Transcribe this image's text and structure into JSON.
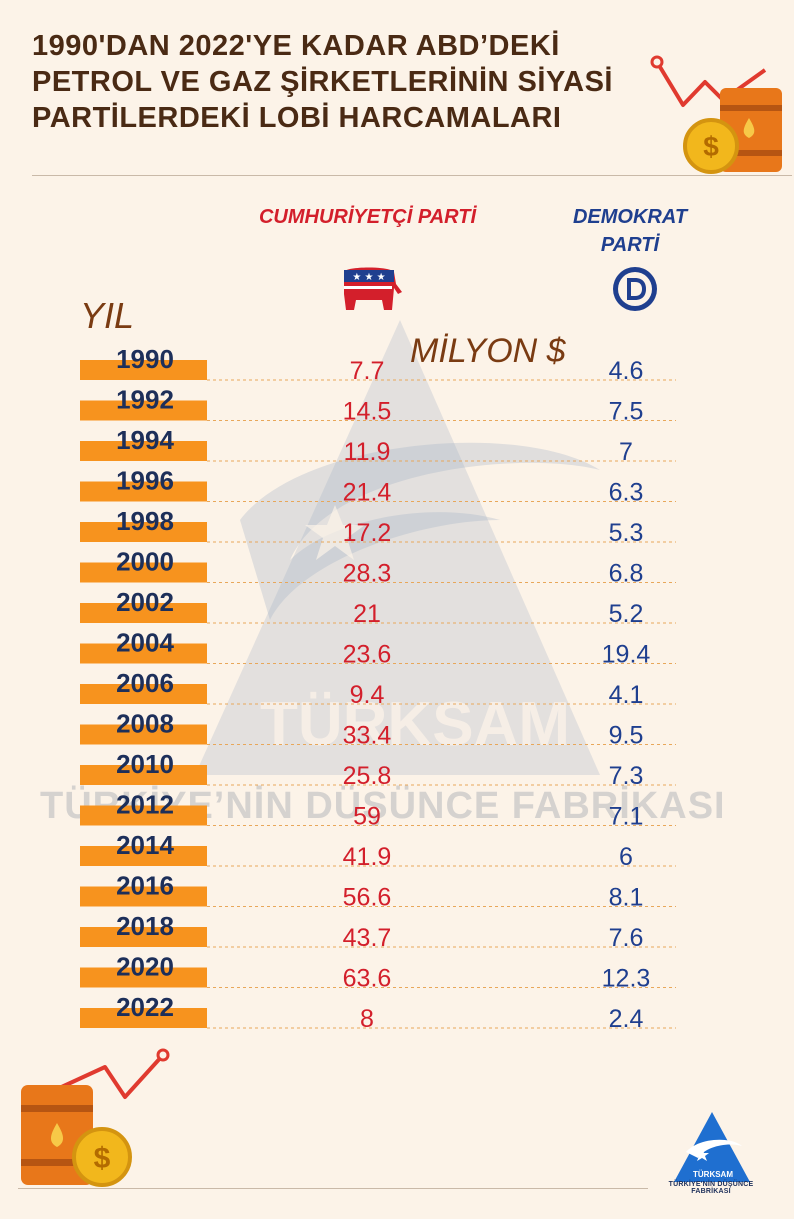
{
  "title": "1990'DAN 2022'YE KADAR ABD’DEKİ PETROL VE GAZ ŞİRKETLERİNİN SİYASİ PARTİLERDEKİ LOBİ HARCAMALARI",
  "columns": {
    "republican": "CUMHURİYETÇİ PARTİ",
    "democrat": "DEMOKRAT PARTİ",
    "year": "YIL",
    "unit": "MİLYON $"
  },
  "watermark": {
    "brand": "TÜRKSAM",
    "slogan": "TÜRKİYE’NİN DÜŞÜNCE FABRİKASI"
  },
  "footer_logo": {
    "brand": "TÜRKSAM",
    "caption": "TÜRKİYE'NİN DÜŞÜNCE FABRİKASI"
  },
  "icons": [
    "oil-barrel-icon",
    "dollar-coin-icon",
    "trend-line-icon",
    "republican-elephant-icon",
    "democrat-d-icon"
  ],
  "colors": {
    "background": "#fcf3e8",
    "title": "#4a2a14",
    "republican": "#d31f2b",
    "democrat": "#1f3f8f",
    "year_bar": "#f7931e",
    "year_text": "#1d2f5a"
  },
  "chart_data": {
    "type": "table",
    "title": "1990'DAN 2022'YE KADAR ABD’DEKİ PETROL VE GAZ ŞİRKETLERİNİN SİYASİ PARTİLERDEKİ LOBİ HARCAMALARI",
    "unit": "MİLYON $",
    "categories": [
      "1990",
      "1992",
      "1994",
      "1996",
      "1998",
      "2000",
      "2002",
      "2004",
      "2006",
      "2008",
      "2010",
      "2012",
      "2014",
      "2016",
      "2018",
      "2020",
      "2022"
    ],
    "series": [
      {
        "name": "CUMHURİYETÇİ PARTİ",
        "values": [
          "7.7",
          "14.5",
          "11.9",
          "21.4",
          "17.2",
          "28.3",
          "21",
          "23.6",
          "9.4",
          "33.4",
          "25.8",
          "59",
          "41.9",
          "56.6",
          "43.7",
          "63.6",
          "8"
        ]
      },
      {
        "name": "DEMOKRAT PARTİ",
        "values": [
          "4.6",
          "7.5",
          "7",
          "6.3",
          "5.3",
          "6.8",
          "5.2",
          "19.4",
          "4.1",
          "9.5",
          "7.3",
          "7.1",
          "6",
          "8.1",
          "7.6",
          "12.3",
          "2.4"
        ]
      }
    ]
  }
}
